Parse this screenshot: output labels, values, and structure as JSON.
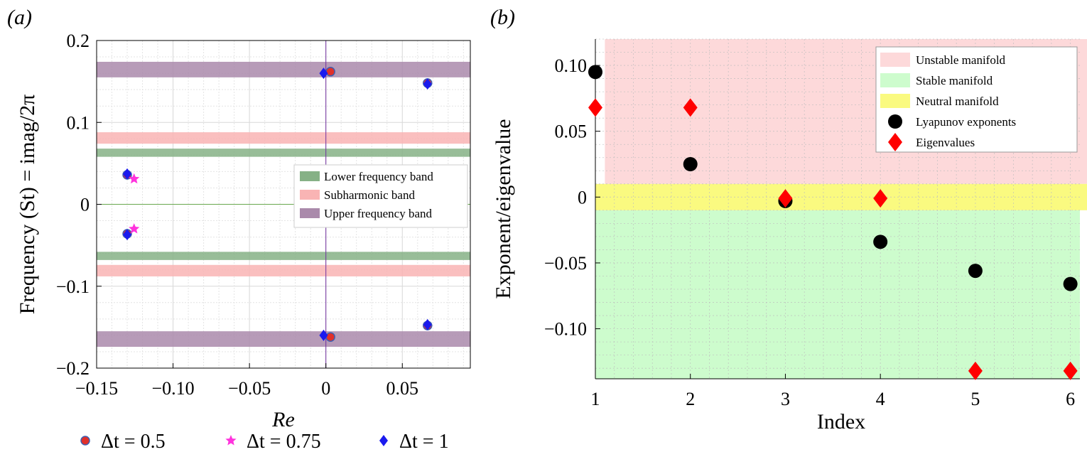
{
  "chart_data": [
    {
      "type": "scatter",
      "panel_label": "(a)",
      "xlabel": "Re",
      "ylabel": "Frequency (St) = imag/2π",
      "xlim": [
        -0.15,
        0.0945
      ],
      "ylim": [
        -0.2,
        0.2
      ],
      "xticks": [
        -0.15,
        -0.1,
        -0.05,
        0,
        0.05
      ],
      "xtick_labels": [
        "−0.15",
        "−0.10",
        "−0.05",
        "0",
        "0.05"
      ],
      "yticks": [
        -0.2,
        -0.1,
        0,
        0.1,
        0.2
      ],
      "ytick_labels": [
        "−0.2",
        "−0.1",
        "0",
        "0.1",
        "0.2"
      ],
      "grid": true,
      "bands": [
        {
          "name": "Lower frequency band",
          "color": "#86b186",
          "ranges": [
            [
              0.058,
              0.068
            ],
            [
              -0.068,
              -0.058
            ]
          ]
        },
        {
          "name": "Subharmonic band",
          "color": "#f9b4b4",
          "ranges": [
            [
              0.074,
              0.088
            ],
            [
              -0.088,
              -0.074
            ]
          ]
        },
        {
          "name": "Upper frequency band",
          "color": "#aa8aab",
          "ranges": [
            [
              0.155,
              0.174
            ],
            [
              -0.174,
              -0.155
            ]
          ]
        }
      ],
      "legend": [
        "Lower frequency band",
        "Subharmonic band",
        "Upper frequency band"
      ],
      "legend_position": "center-right",
      "series": [
        {
          "name": "Δt = 0.5",
          "marker": "circle",
          "color": "#e0302a",
          "edge": "#3f5fb0",
          "x": [
            0.003,
            0.003,
            0.0665,
            0.0665,
            -0.13,
            -0.13
          ],
          "y": [
            0.162,
            -0.162,
            0.148,
            -0.148,
            0.036,
            -0.036
          ]
        },
        {
          "name": "Δt = 0.75",
          "marker": "star",
          "color": "#ff33dd",
          "x": [
            -0.1255,
            -0.1255
          ],
          "y": [
            0.031,
            -0.03
          ]
        },
        {
          "name": "Δt = 1",
          "marker": "diamond",
          "color": "#1a1aee",
          "x": [
            -0.0015,
            -0.0015,
            0.0665,
            0.0665,
            -0.13,
            -0.13
          ],
          "y": [
            0.16,
            -0.16,
            0.147,
            -0.147,
            0.037,
            -0.037
          ]
        }
      ],
      "bottom_legend": [
        "Δt = 0.5",
        "Δt = 0.75",
        "Δt = 1"
      ]
    },
    {
      "type": "scatter",
      "panel_label": "(b)",
      "xlabel": "Index",
      "ylabel": "Exponent/eigenvalue",
      "xlim": [
        1,
        6.1
      ],
      "ylim": [
        -0.138,
        0.12
      ],
      "xticks": [
        1,
        2,
        3,
        4,
        5,
        6
      ],
      "xtick_labels": [
        "1",
        "2",
        "3",
        "4",
        "5",
        "6"
      ],
      "yticks": [
        0.1,
        0.05,
        0,
        -0.05,
        -0.1
      ],
      "ytick_labels": [
        "0.10",
        "0.05",
        "0",
        "−0.05",
        "−0.10"
      ],
      "grid": true,
      "regions": [
        {
          "name": "Unstable manifold",
          "color": "#fdd9da",
          "y_range": [
            0.01,
            0.12
          ]
        },
        {
          "name": "Stable manifold",
          "color": "#cdfccd",
          "y_range": [
            -0.138,
            -0.01
          ]
        },
        {
          "name": "Neutral manifold",
          "color": "#fafa80",
          "y_range": [
            -0.01,
            0.01
          ]
        }
      ],
      "legend": [
        "Unstable manifold",
        "Stable manifold",
        "Neutral manifold",
        "Lyapunov exponents",
        "Eigenvalues"
      ],
      "legend_position": "top-right",
      "series": [
        {
          "name": "Lyapunov exponents",
          "marker": "circle",
          "color": "#000000",
          "x": [
            1,
            2,
            3,
            4,
            5,
            6
          ],
          "y": [
            0.095,
            0.025,
            -0.003,
            -0.034,
            -0.056,
            -0.066
          ]
        },
        {
          "name": "Eigenvalues",
          "marker": "diamond",
          "color": "#ff0000",
          "x": [
            1,
            2,
            3,
            4,
            5,
            6
          ],
          "y": [
            0.068,
            0.068,
            -0.001,
            -0.001,
            -0.132,
            -0.132
          ]
        }
      ]
    }
  ]
}
